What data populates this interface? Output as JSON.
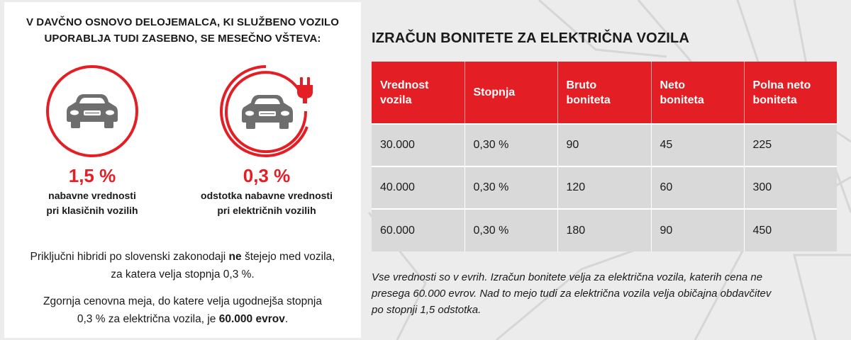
{
  "left": {
    "headline": [
      "V DAVČNO OSNOVO DELOJEMALCA, KI SLUŽBENO VOZILO",
      "UPORABLJA TUDI ZASEBNO, SE MESEČNO VŠTEVA:"
    ],
    "classic": {
      "icon": "car-icon",
      "value": "1,5 %",
      "desc_line1": "nabavne vrednosti",
      "desc_line2": "pri klasičnih vozilih"
    },
    "electric": {
      "icon": "electric-car-plug-icon",
      "value": "0,3 %",
      "desc_line1": "odstotka nabavne vrednosti",
      "desc_line2": "pri električnih vozilih"
    },
    "note1": {
      "line1_before": "Priključni hibridi po slovenski zakonodaji ",
      "line1_bold": "ne",
      "line1_after": " štejejo med vozila,",
      "line2": "za katera velja stopnja 0,3 %."
    },
    "note2": {
      "line1": "Zgornja cenovna meja, do katere velja ugodnejša stopnja",
      "line2_before": "0,3 % za električna vozila, je ",
      "line2_bold": "60.000 evrov",
      "line2_after": "."
    }
  },
  "right": {
    "title": "IZRAČUN BONITETE ZA ELEKTRIČNA VOZILA",
    "table": {
      "headers": [
        {
          "line1": "Vrednost",
          "line2": "vozila"
        },
        {
          "line1": "Stopnja",
          "line2": ""
        },
        {
          "line1": "Bruto",
          "line2": "boniteta"
        },
        {
          "line1": "Neto",
          "line2": "boniteta"
        },
        {
          "line1": "Polna neto",
          "line2": "boniteta"
        }
      ],
      "rows": [
        [
          "30.000",
          "0,30 %",
          "90",
          "45",
          "225"
        ],
        [
          "40.000",
          "0,30 %",
          "120",
          "60",
          "300"
        ],
        [
          "60.000",
          "0,30 %",
          "180",
          "90",
          "450"
        ]
      ]
    },
    "footnote": [
      "Vse vrednosti so v evrih. Izračun bonitete velja za električna vozila, katerih cena ne",
      "presega 60.000 evrov. Nad to mejo tudi za električna vozila velja običajna obdavčitev",
      "po stopnji 1,5 odstotka."
    ]
  },
  "colors": {
    "accent": "#e31e24",
    "row_bg": "#d9d9d9",
    "icon_gray": "#6e6e6e",
    "page_bg": "#ececec"
  }
}
